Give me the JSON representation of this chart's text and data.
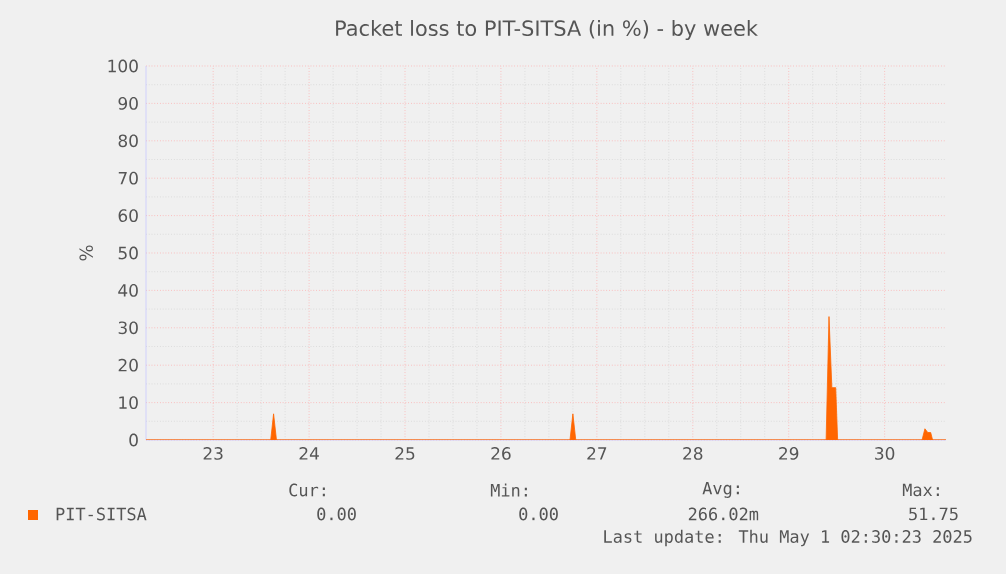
{
  "chart_data": {
    "type": "area",
    "title": "Packet loss to PIT-SITSA (in %) - by week",
    "ylabel": "%",
    "xlim": [
      22.3,
      30.64
    ],
    "xticks": [
      23,
      24,
      25,
      26,
      27,
      28,
      29,
      30
    ],
    "ylim": [
      0,
      100
    ],
    "yticks": [
      0,
      10,
      20,
      30,
      40,
      50,
      60,
      70,
      80,
      90,
      100
    ],
    "grid": true,
    "legend": "bottom",
    "series": [
      {
        "name": "PIT-SITSA",
        "color": "#ff6600",
        "x": [
          22.3,
          23.6,
          23.63,
          23.66,
          26.72,
          26.75,
          26.78,
          29.39,
          29.42,
          29.45,
          29.49,
          29.51,
          30.39,
          30.42,
          30.45,
          30.48,
          30.5,
          30.64
        ],
        "values": [
          0,
          0,
          7,
          0,
          0,
          7,
          0,
          0,
          33,
          14,
          14,
          0,
          0,
          3,
          2,
          2,
          0,
          0
        ]
      }
    ],
    "annotations": [
      "Cur:",
      "Min:",
      "Avg:",
      "Max:",
      "0.00",
      "0.00",
      "266.02m",
      "51.75",
      "Last update: Thu May  1 02:30:23 2025"
    ]
  }
}
